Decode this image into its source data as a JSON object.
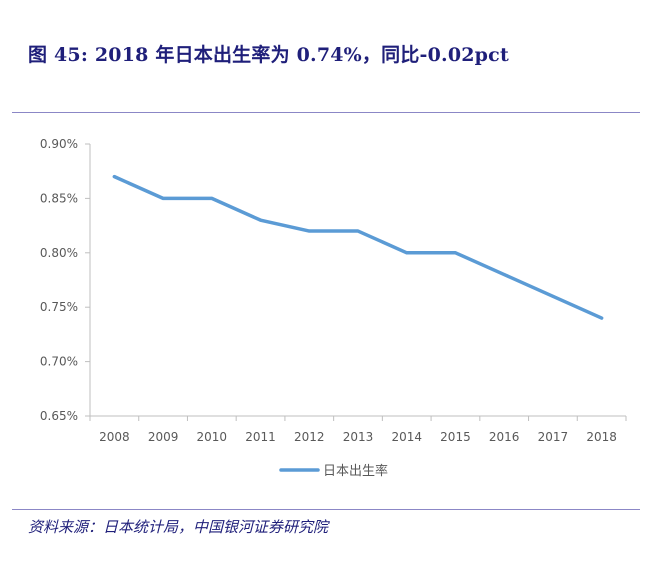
{
  "figure": {
    "title": "图 45:  2018 年日本出生率为 0.74%，同比-0.02pct",
    "source": "资料来源：日本统计局，中国银河证券研究院"
  },
  "colors": {
    "title": "#1f1f7a",
    "rule": "#8b87c6",
    "series": "#5b9bd5",
    "axis": "#bfbfbf",
    "tick_text": "#595959"
  },
  "chart_data": {
    "type": "line",
    "title": "",
    "xlabel": "",
    "ylabel": "",
    "x": [
      "2008",
      "2009",
      "2010",
      "2011",
      "2012",
      "2013",
      "2014",
      "2015",
      "2016",
      "2017",
      "2018"
    ],
    "series": [
      {
        "name": "日本出生率",
        "values": [
          0.87,
          0.85,
          0.85,
          0.83,
          0.82,
          0.82,
          0.8,
          0.8,
          0.78,
          0.76,
          0.74
        ]
      }
    ],
    "ylim": [
      0.65,
      0.9
    ],
    "yticks": [
      0.65,
      0.7,
      0.75,
      0.8,
      0.85,
      0.9
    ],
    "ytick_labels": [
      "0.65%",
      "0.70%",
      "0.75%",
      "0.80%",
      "0.85%",
      "0.90%"
    ],
    "grid": false,
    "legend": "bottom-center"
  }
}
